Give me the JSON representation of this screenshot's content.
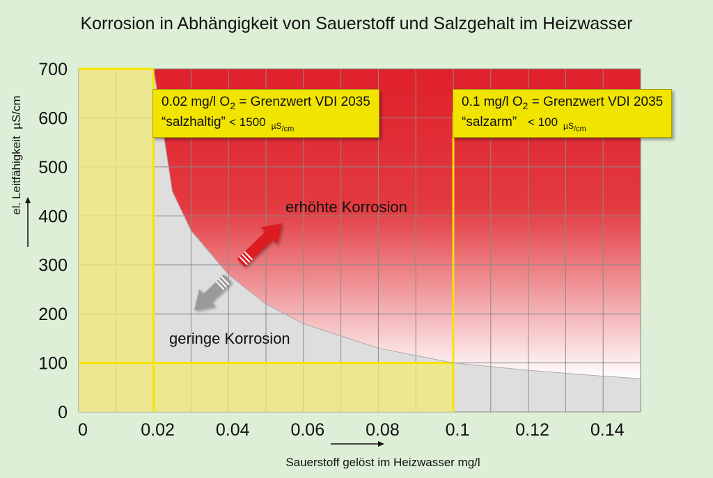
{
  "chart_data": {
    "type": "area",
    "title": "Korrosion in Abhängigkeit von Sauerstoff und Salzgehalt im Heizwasser",
    "xlabel": "Sauerstoff gelöst im Heizwasser mg/l",
    "ylabel": "el. Leitfähigkeit",
    "ylabel_unit": "µS/cm",
    "xlim": [
      0,
      0.15
    ],
    "ylim": [
      0,
      700
    ],
    "xticks": [
      "0",
      "0.02",
      "0.04",
      "0.06",
      "0.08",
      "0.1",
      "0.12",
      "0.14"
    ],
    "yticks": [
      "0",
      "100",
      "200",
      "300",
      "400",
      "500",
      "600",
      "700"
    ],
    "grid": true,
    "boundary_curve": {
      "x": [
        0.02,
        0.025,
        0.03,
        0.04,
        0.05,
        0.06,
        0.08,
        0.1,
        0.12,
        0.14,
        0.15
      ],
      "y": [
        700,
        450,
        370,
        280,
        220,
        180,
        130,
        100,
        85,
        73,
        68
      ]
    },
    "regions": {
      "high": "erhöhte Korrosion",
      "low": "geringe Korrosion"
    },
    "annotations": [
      {
        "line1_pre": "0.02 mg/l O",
        "line1_sub": "2",
        "line1_post": " = Grenzwert VDI 2035",
        "line2_quote": "“salzhaltig”",
        "line2_limit": "< 1500",
        "unit_main": "µS",
        "unit_sub": "/cm"
      },
      {
        "line1_pre": "0.1 mg/l O",
        "line1_sub": "2",
        "line1_post": " = Grenzwert VDI 2035",
        "line2_quote": "“salzarm”",
        "line2_limit": "< 100",
        "unit_main": "µS",
        "unit_sub": "/cm"
      }
    ],
    "limits": {
      "o2_salzhaltig": 0.02,
      "o2_salzarm": 0.1,
      "cond_salzarm": 100
    },
    "colors": {
      "background": "#ddefd6",
      "plot": "#dedede",
      "grid": "#8a8a8a",
      "corrosion": "#e0202a",
      "limit_fill": "#f1ea78",
      "limit_line": "#f5e400",
      "arrow_up": "#dd1c24",
      "arrow_down": "#9a9a9a"
    }
  }
}
